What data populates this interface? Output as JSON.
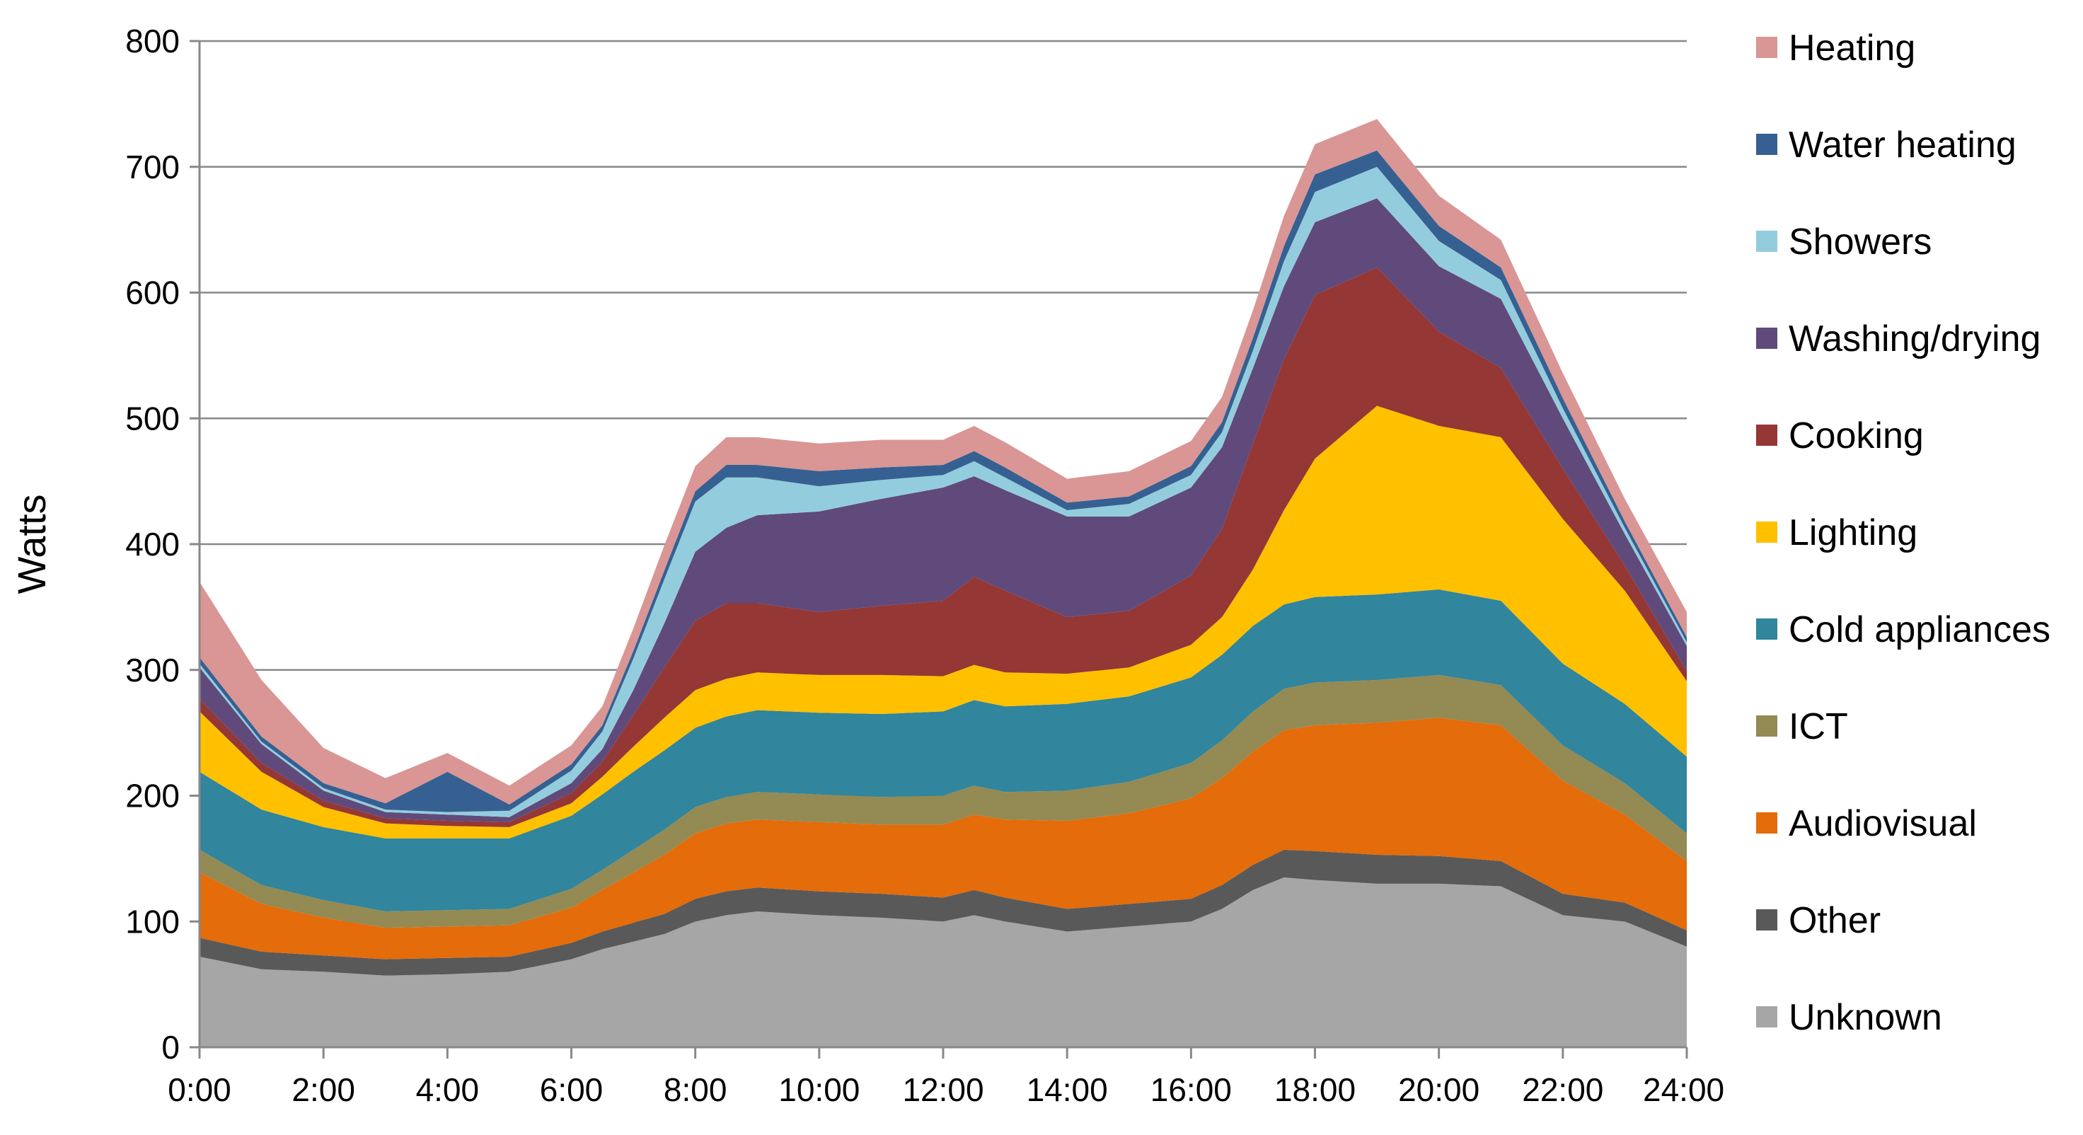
{
  "chart_data": {
    "type": "area",
    "stacked": true,
    "title": "",
    "xlabel": "",
    "ylabel": "Watts",
    "ylim": [
      0,
      800
    ],
    "yticks": [
      0,
      100,
      200,
      300,
      400,
      500,
      600,
      700,
      800
    ],
    "xticks": [
      "0:00",
      "2:00",
      "4:00",
      "6:00",
      "8:00",
      "10:00",
      "12:00",
      "14:00",
      "16:00",
      "18:00",
      "20:00",
      "22:00",
      "24:00"
    ],
    "xlim_hours": [
      0,
      24
    ],
    "grid": "horizontal",
    "legend_position": "right",
    "x": [
      "0:00",
      "1:00",
      "2:00",
      "3:00",
      "4:00",
      "5:00",
      "6:00",
      "6:30",
      "7:00",
      "7:30",
      "8:00",
      "8:30",
      "9:00",
      "10:00",
      "11:00",
      "12:00",
      "12:30",
      "13:00",
      "14:00",
      "15:00",
      "16:00",
      "16:30",
      "17:00",
      "17:30",
      "18:00",
      "19:00",
      "20:00",
      "21:00",
      "22:00",
      "23:00",
      "24:00"
    ],
    "series": [
      {
        "name": "Unknown",
        "color": "#a6a6a6",
        "values": [
          72,
          62,
          60,
          57,
          58,
          60,
          70,
          78,
          84,
          90,
          100,
          105,
          108,
          105,
          103,
          100,
          105,
          100,
          92,
          96,
          100,
          110,
          125,
          135,
          133,
          130,
          130,
          128,
          105,
          100,
          80
        ]
      },
      {
        "name": "Other",
        "color": "#595959",
        "values": [
          15,
          14,
          13,
          13,
          13,
          12,
          13,
          14,
          15,
          16,
          18,
          19,
          19,
          19,
          19,
          19,
          20,
          19,
          18,
          18,
          18,
          19,
          20,
          22,
          23,
          23,
          22,
          20,
          17,
          15,
          13
        ]
      },
      {
        "name": "Audiovisual",
        "color": "#e46c0a",
        "values": [
          52,
          38,
          30,
          25,
          25,
          25,
          28,
          33,
          40,
          47,
          52,
          54,
          54,
          55,
          55,
          58,
          60,
          62,
          70,
          72,
          80,
          85,
          90,
          95,
          100,
          105,
          110,
          108,
          90,
          70,
          55
        ]
      },
      {
        "name": "ICT",
        "color": "#948a54",
        "values": [
          18,
          15,
          14,
          13,
          13,
          13,
          15,
          16,
          18,
          20,
          21,
          21,
          22,
          22,
          22,
          23,
          23,
          22,
          24,
          25,
          28,
          30,
          32,
          33,
          34,
          34,
          34,
          32,
          28,
          25,
          22
        ]
      },
      {
        "name": "Cold appliances",
        "color": "#31859c",
        "values": [
          62,
          60,
          58,
          58,
          57,
          56,
          58,
          60,
          62,
          63,
          63,
          64,
          65,
          65,
          66,
          67,
          68,
          68,
          69,
          68,
          68,
          68,
          68,
          67,
          68,
          68,
          68,
          67,
          65,
          63,
          61
        ]
      },
      {
        "name": "Lighting",
        "color": "#ffc000",
        "values": [
          48,
          30,
          16,
          12,
          10,
          9,
          10,
          14,
          20,
          26,
          30,
          30,
          30,
          30,
          31,
          28,
          28,
          27,
          24,
          23,
          26,
          30,
          45,
          75,
          110,
          150,
          130,
          130,
          115,
          90,
          60
        ]
      },
      {
        "name": "Cooking",
        "color": "#953735",
        "values": [
          10,
          7,
          5,
          4,
          4,
          4,
          8,
          12,
          25,
          40,
          55,
          60,
          55,
          50,
          55,
          60,
          70,
          65,
          45,
          45,
          55,
          70,
          100,
          120,
          130,
          110,
          75,
          55,
          40,
          20,
          8
        ]
      },
      {
        "name": "Washing/drying",
        "color": "#604a7b",
        "values": [
          25,
          15,
          8,
          5,
          5,
          4,
          8,
          10,
          20,
          35,
          55,
          60,
          70,
          80,
          85,
          90,
          80,
          80,
          80,
          75,
          70,
          65,
          60,
          58,
          58,
          55,
          52,
          55,
          40,
          25,
          20
        ]
      },
      {
        "name": "Showers",
        "color": "#93cddd",
        "values": [
          3,
          2,
          2,
          2,
          2,
          5,
          10,
          14,
          25,
          35,
          40,
          40,
          30,
          20,
          15,
          10,
          12,
          10,
          5,
          10,
          10,
          12,
          14,
          20,
          24,
          25,
          20,
          15,
          8,
          5,
          3
        ]
      },
      {
        "name": "Water heating",
        "color": "#366092",
        "values": [
          5,
          4,
          4,
          5,
          32,
          5,
          5,
          5,
          6,
          7,
          8,
          10,
          10,
          12,
          10,
          8,
          8,
          8,
          6,
          6,
          7,
          8,
          10,
          12,
          14,
          13,
          12,
          10,
          8,
          5,
          4
        ]
      },
      {
        "name": "Heating",
        "color": "#d99694",
        "values": [
          60,
          45,
          28,
          20,
          15,
          15,
          15,
          15,
          18,
          20,
          20,
          22,
          22,
          22,
          22,
          20,
          20,
          20,
          19,
          20,
          20,
          20,
          22,
          24,
          24,
          25,
          24,
          22,
          20,
          18,
          20
        ]
      }
    ]
  }
}
